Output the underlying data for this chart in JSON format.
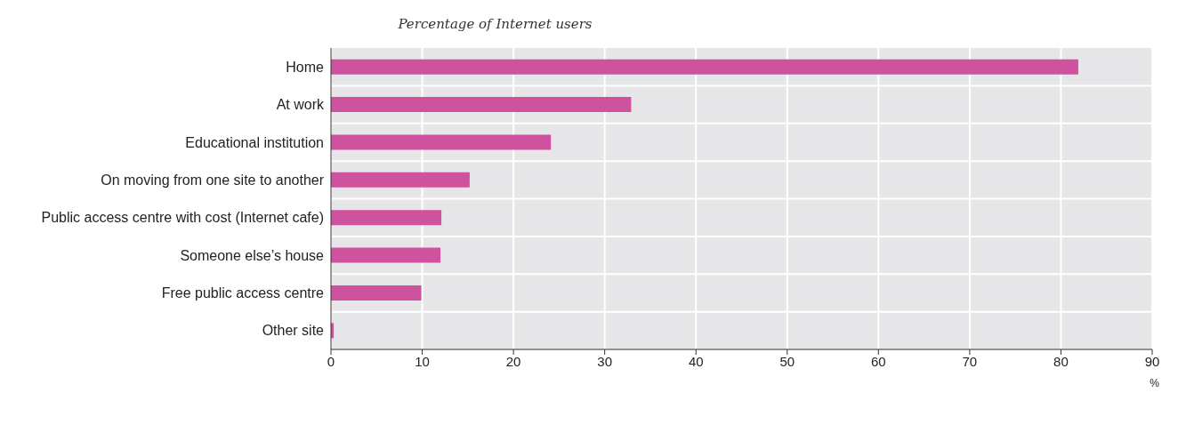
{
  "chart_data": {
    "type": "bar",
    "orientation": "horizontal",
    "subtitle": "Percentage of Internet users",
    "xlabel": "%",
    "categories": [
      "Home",
      "At work",
      "Educational institution",
      "On moving from one site to another",
      "Public access centre with cost (Internet cafe)",
      "Someone else’s house",
      "Free public access centre",
      "Other site"
    ],
    "values": [
      81.9,
      32.9,
      24.1,
      15.2,
      12.1,
      12.0,
      9.9,
      0.3
    ],
    "color": "#cf529e",
    "xlim": [
      0,
      90
    ],
    "xticks": [
      0,
      10,
      20,
      30,
      40,
      50,
      60,
      70,
      80,
      90
    ],
    "grid": true
  }
}
